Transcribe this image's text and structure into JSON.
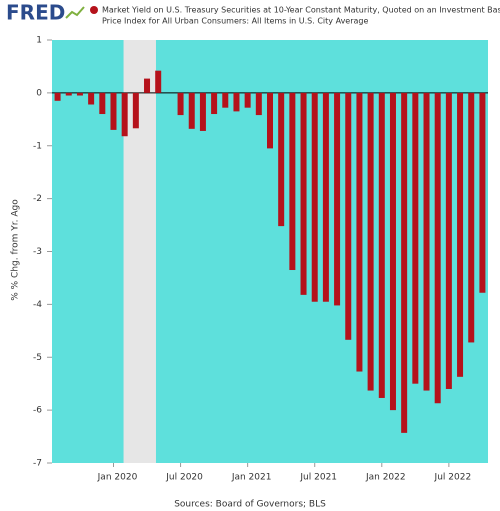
{
  "chart_data": {
    "type": "bar",
    "brand": "FRED",
    "title_lines": [
      "Market Yield on U.S. Treasury Securities at 10-Year Constant Maturity, Quoted on an Investment Basis-Consumer",
      "Price Index for All Urban Consumers: All Items in U.S. City Average"
    ],
    "y_label": "% % Chg. from Yr. Ago",
    "source": "Sources: Board of Governors; BLS",
    "background": "#5ee0dc",
    "x": [
      "2019-08",
      "2019-09",
      "2019-10",
      "2019-11",
      "2019-12",
      "2020-01",
      "2020-02",
      "2020-03",
      "2020-04",
      "2020-05",
      "2020-06",
      "2020-07",
      "2020-08",
      "2020-09",
      "2020-10",
      "2020-11",
      "2020-12",
      "2021-01",
      "2021-02",
      "2021-03",
      "2021-04",
      "2021-05",
      "2021-06",
      "2021-07",
      "2021-08",
      "2021-09",
      "2021-10",
      "2021-11",
      "2021-12",
      "2022-01",
      "2022-02",
      "2022-03",
      "2022-04",
      "2022-05",
      "2022-06",
      "2022-07",
      "2022-08",
      "2022-09",
      "2022-10"
    ],
    "series": [
      {
        "name": "Market Yield on U.S. Treasury Securities at 10-Year Constant Maturity, Quoted on an Investment Basis-Consumer Price Index for All Urban Consumers: All Items in U.S. City Average",
        "color": "#b5121b",
        "values": [
          -0.15,
          -0.05,
          -0.05,
          -0.22,
          -0.4,
          -0.7,
          -0.82,
          -0.67,
          0.27,
          0.42,
          0,
          -0.42,
          -0.68,
          -0.72,
          -0.4,
          -0.28,
          -0.35,
          -0.28,
          -0.42,
          -1.05,
          -2.52,
          -3.35,
          -3.82,
          -3.95,
          -3.95,
          -4.02,
          -4.67,
          -5.27,
          -5.63,
          -5.77,
          -6.0,
          -6.43,
          -5.5,
          -5.63,
          -5.87,
          -5.6,
          -5.37,
          -4.72,
          -3.78
        ]
      }
    ],
    "ylim": [
      -7,
      1
    ],
    "yticks": [
      -7,
      -6,
      -5,
      -4,
      -3,
      -2,
      -1,
      0,
      1
    ],
    "xticks": [
      {
        "value": "2020-01",
        "label": "Jan 2020"
      },
      {
        "value": "2020-07",
        "label": "Jul 2020"
      },
      {
        "value": "2021-01",
        "label": "Jan 2021"
      },
      {
        "value": "2021-07",
        "label": "Jul 2021"
      },
      {
        "value": "2022-01",
        "label": "Jan 2022"
      },
      {
        "value": "2022-07",
        "label": "Jul 2022"
      }
    ],
    "recessions": [
      {
        "start": "2020-02",
        "end": "2020-04"
      }
    ]
  }
}
